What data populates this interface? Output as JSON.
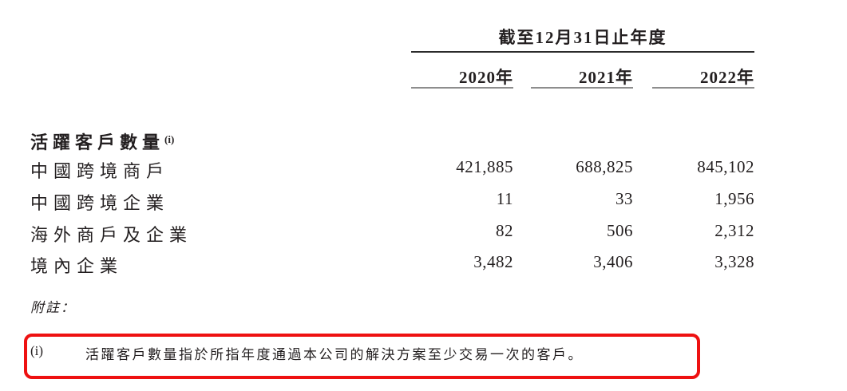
{
  "table": {
    "header": {
      "period_title": "截至12月31日止年度",
      "year_columns": [
        "2020年",
        "2021年",
        "2022年"
      ]
    },
    "section_title": "活躍客戶數量",
    "section_title_sup": "(i)",
    "rows": [
      {
        "label": "中國跨境商戶",
        "values": [
          "421,885",
          "688,825",
          "845,102"
        ]
      },
      {
        "label": "中國跨境企業",
        "values": [
          "11",
          "33",
          "1,956"
        ]
      },
      {
        "label": "海外商戶及企業",
        "values": [
          "82",
          "506",
          "2,312"
        ]
      },
      {
        "label": "境內企業",
        "values": [
          "3,482",
          "3,406",
          "3,328"
        ]
      }
    ]
  },
  "notes": {
    "heading": "附註：",
    "items": [
      {
        "marker": "(i)",
        "text": "活躍客戶數量指於所指年度通過本公司的解決方案至少交易一次的客戶。",
        "highlighted": true
      }
    ]
  },
  "colors": {
    "text": "#231f20",
    "top_rule": "#2b2b2b",
    "year_underline": "#8d8d8d",
    "highlight_border": "#ee1111",
    "background": "#ffffff"
  }
}
